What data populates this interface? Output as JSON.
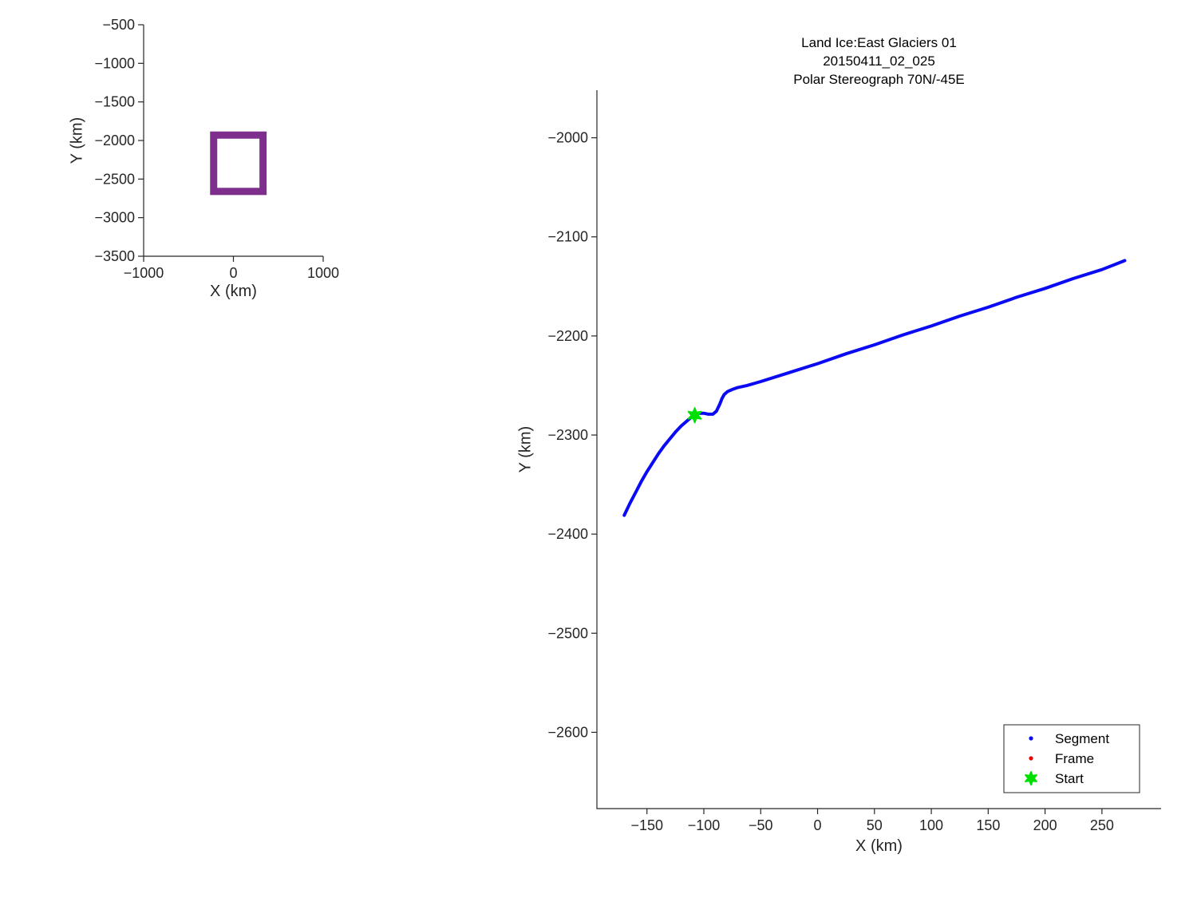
{
  "figure": {
    "background": "#ffffff",
    "axis_color": "#262626",
    "text_color": "#000000"
  },
  "chart_data": [
    {
      "id": "overview",
      "type": "line",
      "title": "",
      "xlabel": "X (km)",
      "ylabel": "Y (km)",
      "xlim": [
        -1000,
        1000
      ],
      "ylim": [
        -500,
        -3500
      ],
      "xticks": [
        -1000,
        0,
        1000
      ],
      "yticks": [
        -500,
        -1000,
        -1500,
        -2000,
        -2500,
        -3000,
        -3500
      ],
      "grid": false,
      "shapes": [
        {
          "kind": "rect-outline",
          "name": "coverage-extent-box",
          "x0": -220,
          "x1": 330,
          "y0": -1930,
          "y1": -2660,
          "color": "#7E2F8E",
          "linewidth": 9
        }
      ]
    },
    {
      "id": "main",
      "type": "line",
      "title_lines": [
        "Land Ice:East Glaciers 01",
        "20150411_02_025",
        "Polar Stereograph 70N/-45E"
      ],
      "xlabel": "X (km)",
      "ylabel": "Y (km)",
      "xlim": [
        -194,
        302
      ],
      "ylim": [
        -1952,
        -2677
      ],
      "xticks": [
        -150,
        -100,
        -50,
        0,
        50,
        100,
        150,
        200,
        250
      ],
      "yticks": [
        -2000,
        -2100,
        -2200,
        -2300,
        -2400,
        -2500,
        -2600
      ],
      "grid": false,
      "legend": {
        "position": "lower-right",
        "entries": [
          "Segment",
          "Frame",
          "Start"
        ]
      },
      "series": [
        {
          "name": "Segment",
          "color": "#0a0af5",
          "marker": "dot",
          "points": [
            [
              -170,
              -2381
            ],
            [
              -165,
              -2369
            ],
            [
              -160,
              -2358
            ],
            [
              -155,
              -2347
            ],
            [
              -150,
              -2337
            ],
            [
              -145,
              -2328
            ],
            [
              -140,
              -2319
            ],
            [
              -135,
              -2311
            ],
            [
              -130,
              -2304
            ],
            [
              -125,
              -2297
            ],
            [
              -120,
              -2291
            ],
            [
              -115,
              -2286
            ],
            [
              -111,
              -2282
            ],
            [
              -108,
              -2280
            ],
            [
              -104,
              -2278
            ],
            [
              -100,
              -2278
            ],
            [
              -96,
              -2279
            ],
            [
              -92,
              -2279
            ],
            [
              -89,
              -2276
            ],
            [
              -86,
              -2269
            ],
            [
              -84,
              -2263
            ],
            [
              -82,
              -2259
            ],
            [
              -79,
              -2256
            ],
            [
              -75,
              -2254
            ],
            [
              -70,
              -2252
            ],
            [
              -62,
              -2250
            ],
            [
              -50,
              -2246
            ],
            [
              -25,
              -2237
            ],
            [
              0,
              -2228
            ],
            [
              25,
              -2218
            ],
            [
              50,
              -2209
            ],
            [
              75,
              -2199
            ],
            [
              100,
              -2190
            ],
            [
              125,
              -2180
            ],
            [
              150,
              -2171
            ],
            [
              175,
              -2161
            ],
            [
              200,
              -2152
            ],
            [
              225,
              -2142
            ],
            [
              250,
              -2133
            ],
            [
              270,
              -2124
            ]
          ]
        },
        {
          "name": "Frame",
          "color": "#ee0000",
          "marker": "dot",
          "points": []
        },
        {
          "name": "Start",
          "color": "#00e000",
          "marker": "hexagram",
          "points": [
            [
              -108,
              -2280
            ]
          ]
        }
      ]
    }
  ]
}
